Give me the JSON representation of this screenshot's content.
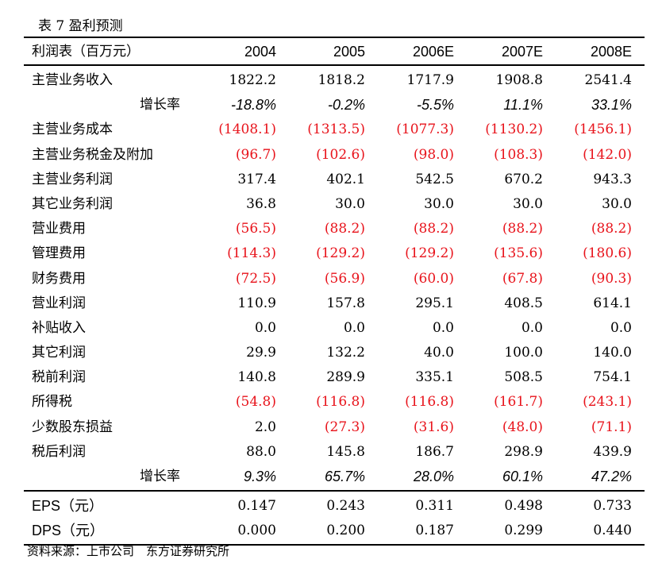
{
  "title": "表 7 盈利预测",
  "header": {
    "label": "利润表（百万元）",
    "years": [
      "2004",
      "2005",
      "2006E",
      "2007E",
      "2008E"
    ]
  },
  "colors": {
    "negative": "#e8131b",
    "text": "#000000"
  },
  "rows": [
    {
      "label": "主营业务收入",
      "values": [
        "1822.2",
        "1818.2",
        "1717.9",
        "1908.8",
        "2541.4"
      ],
      "negative": false
    },
    {
      "label": "增长率",
      "values": [
        "-18.8%",
        "-0.2%",
        "-5.5%",
        "11.1%",
        "33.1%"
      ],
      "growth": true
    },
    {
      "label": "主营业务成本",
      "values": [
        "(1408.1)",
        "(1313.5)",
        "(1077.3)",
        "(1130.2)",
        "(1456.1)"
      ],
      "negative": true
    },
    {
      "label": "主营业务税金及附加",
      "values": [
        "(96.7)",
        "(102.6)",
        "(98.0)",
        "(108.3)",
        "(142.0)"
      ],
      "negative": true
    },
    {
      "label": "主营业务利润",
      "values": [
        "317.4",
        "402.1",
        "542.5",
        "670.2",
        "943.3"
      ],
      "negative": false
    },
    {
      "label": "其它业务利润",
      "values": [
        "36.8",
        "30.0",
        "30.0",
        "30.0",
        "30.0"
      ],
      "negative": false
    },
    {
      "label": "营业费用",
      "values": [
        "(56.5)",
        "(88.2)",
        "(88.2)",
        "(88.2)",
        "(88.2)"
      ],
      "negative": true
    },
    {
      "label": "管理费用",
      "values": [
        "(114.3)",
        "(129.2)",
        "(129.2)",
        "(135.6)",
        "(180.6)"
      ],
      "negative": true
    },
    {
      "label": "财务费用",
      "values": [
        "(72.5)",
        "(56.9)",
        "(60.0)",
        "(67.8)",
        "(90.3)"
      ],
      "negative": true
    },
    {
      "label": "营业利润",
      "values": [
        "110.9",
        "157.8",
        "295.1",
        "408.5",
        "614.1"
      ],
      "negative": false
    },
    {
      "label": "补贴收入",
      "values": [
        "0.0",
        "0.0",
        "0.0",
        "0.0",
        "0.0"
      ],
      "negative": false
    },
    {
      "label": "其它利润",
      "values": [
        "29.9",
        "132.2",
        "40.0",
        "100.0",
        "140.0"
      ],
      "negative": false
    },
    {
      "label": "税前利润",
      "values": [
        "140.8",
        "289.9",
        "335.1",
        "508.5",
        "754.1"
      ],
      "negative": false
    },
    {
      "label": "所得税",
      "values": [
        "(54.8)",
        "(116.8)",
        "(116.8)",
        "(161.7)",
        "(243.1)"
      ],
      "negative": true
    },
    {
      "label": "少数股东损益",
      "values": [
        "2.0",
        "(27.3)",
        "(31.6)",
        "(48.0)",
        "(71.1)"
      ],
      "negative_cells": [
        false,
        true,
        true,
        true,
        true
      ]
    },
    {
      "label": "税后利润",
      "values": [
        "88.0",
        "145.8",
        "186.7",
        "298.9",
        "439.9"
      ],
      "negative": false
    },
    {
      "label": "增长率",
      "values": [
        "9.3%",
        "65.7%",
        "28.0%",
        "60.1%",
        "47.2%"
      ],
      "growth": true
    }
  ],
  "per_share": [
    {
      "label": "EPS（元）",
      "values": [
        "0.147",
        "0.243",
        "0.311",
        "0.498",
        "0.733"
      ]
    },
    {
      "label": "DPS（元）",
      "values": [
        "0.000",
        "0.200",
        "0.187",
        "0.299",
        "0.440"
      ]
    }
  ],
  "footer": "资料来源：上市公司　东方证券研究所"
}
